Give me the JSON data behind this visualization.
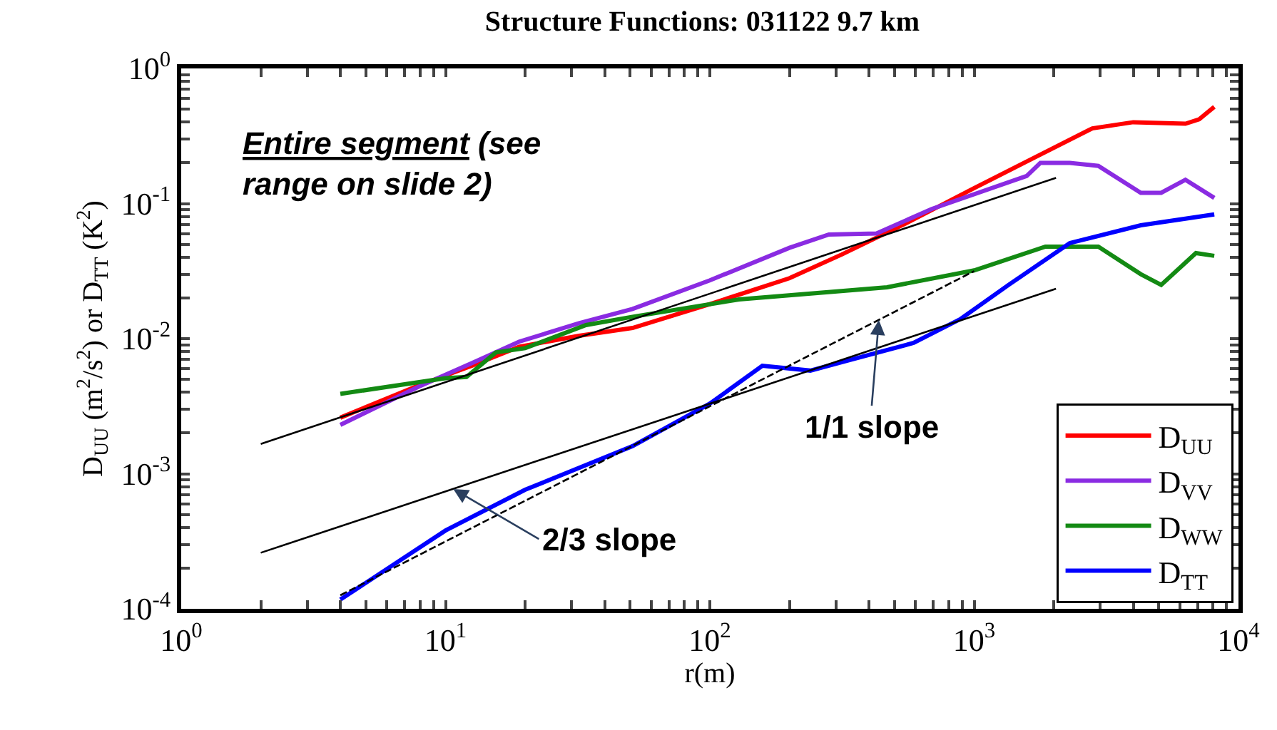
{
  "chart_data": {
    "type": "line",
    "title": "Structure Functions: 031122 9.7 km",
    "xlabel": "r(m)",
    "ylabel": "D$_{UU}$ (m$^{2}$/s$^{2}$) or D$_{TT}$ (K$^{2}$)",
    "log": "xy",
    "legend": "bottom right",
    "marker": "none",
    "line_style": "solid",
    "xlim": [
      1,
      10000
    ],
    "ylim": [
      0.0001,
      1
    ],
    "xticks": [
      {
        "value": 1,
        "label": "10$^{0}$"
      },
      {
        "value": 2,
        "label": null
      },
      {
        "value": 3,
        "label": null
      },
      {
        "value": 4,
        "label": null
      },
      {
        "value": 5,
        "label": null
      },
      {
        "value": 6,
        "label": null
      },
      {
        "value": 7,
        "label": null
      },
      {
        "value": 8,
        "label": null
      },
      {
        "value": 9,
        "label": null
      },
      {
        "value": 10,
        "label": "10$^{1}$"
      },
      {
        "value": 20,
        "label": null
      },
      {
        "value": 30,
        "label": null
      },
      {
        "value": 40,
        "label": null
      },
      {
        "value": 50,
        "label": null
      },
      {
        "value": 60,
        "label": null
      },
      {
        "value": 70,
        "label": null
      },
      {
        "value": 80,
        "label": null
      },
      {
        "value": 90,
        "label": null
      },
      {
        "value": 100,
        "label": "10$^{2}$"
      },
      {
        "value": 200,
        "label": null
      },
      {
        "value": 300,
        "label": null
      },
      {
        "value": 400,
        "label": null
      },
      {
        "value": 500,
        "label": null
      },
      {
        "value": 600,
        "label": null
      },
      {
        "value": 700,
        "label": null
      },
      {
        "value": 800,
        "label": null
      },
      {
        "value": 900,
        "label": null
      },
      {
        "value": 1000,
        "label": "10$^{3}$"
      },
      {
        "value": 2000,
        "label": null
      },
      {
        "value": 3000,
        "label": null
      },
      {
        "value": 4000,
        "label": null
      },
      {
        "value": 5000,
        "label": null
      },
      {
        "value": 6000,
        "label": null
      },
      {
        "value": 7000,
        "label": null
      },
      {
        "value": 8000,
        "label": null
      },
      {
        "value": 9000,
        "label": null
      },
      {
        "value": 10000,
        "label": "10$^{4}$"
      }
    ],
    "yticks": [
      {
        "value": 0.0001,
        "label": "10$^{-4}$"
      },
      {
        "value": 0.0002,
        "label": null
      },
      {
        "value": 0.0003,
        "label": null
      },
      {
        "value": 0.0004,
        "label": null
      },
      {
        "value": 0.0005,
        "label": null
      },
      {
        "value": 0.0006,
        "label": null
      },
      {
        "value": 0.0007,
        "label": null
      },
      {
        "value": 0.0008,
        "label": null
      },
      {
        "value": 0.0009,
        "label": null
      },
      {
        "value": 0.001,
        "label": "10$^{-3}$"
      },
      {
        "value": 0.002,
        "label": null
      },
      {
        "value": 0.003,
        "label": null
      },
      {
        "value": 0.004,
        "label": null
      },
      {
        "value": 0.005,
        "label": null
      },
      {
        "value": 0.006,
        "label": null
      },
      {
        "value": 0.007,
        "label": null
      },
      {
        "value": 0.008,
        "label": null
      },
      {
        "value": 0.009,
        "label": null
      },
      {
        "value": 0.01,
        "label": "10$^{-2}$"
      },
      {
        "value": 0.02,
        "label": null
      },
      {
        "value": 0.03,
        "label": null
      },
      {
        "value": 0.04,
        "label": null
      },
      {
        "value": 0.05,
        "label": null
      },
      {
        "value": 0.06,
        "label": null
      },
      {
        "value": 0.07,
        "label": null
      },
      {
        "value": 0.08,
        "label": null
      },
      {
        "value": 0.09,
        "label": null
      },
      {
        "value": 0.1,
        "label": "10$^{-1}$"
      },
      {
        "value": 0.2,
        "label": null
      },
      {
        "value": 0.3,
        "label": null
      },
      {
        "value": 0.4,
        "label": null
      },
      {
        "value": 0.5,
        "label": null
      },
      {
        "value": 0.6,
        "label": null
      },
      {
        "value": 0.7,
        "label": null
      },
      {
        "value": 0.8,
        "label": null
      },
      {
        "value": 0.9,
        "label": null
      },
      {
        "value": 1,
        "label": "10$^{0}$"
      }
    ],
    "series": [
      {
        "name": "D$_{UU}$",
        "color": "#ff0000",
        "x": [
          4.0,
          7.9,
          12.6,
          19,
          32,
          51,
          100,
          200,
          316,
          550,
          1000,
          1700,
          2800,
          4000,
          6300,
          7100,
          8100
        ],
        "values": [
          0.0026,
          0.0045,
          0.0063,
          0.0087,
          0.0105,
          0.012,
          0.018,
          0.028,
          0.042,
          0.071,
          0.13,
          0.22,
          0.36,
          0.4,
          0.39,
          0.42,
          0.52
        ]
      },
      {
        "name": "D$_{VV}$",
        "color": "#8a2be2",
        "x": [
          4.0,
          7.9,
          12.6,
          19,
          32,
          51,
          100,
          200,
          282,
          427,
          690,
          1580,
          1780,
          2300,
          2950,
          4270,
          5100,
          6300,
          8100
        ],
        "values": [
          0.0023,
          0.0044,
          0.0066,
          0.0095,
          0.013,
          0.0166,
          0.027,
          0.047,
          0.059,
          0.06,
          0.091,
          0.16,
          0.2,
          0.2,
          0.19,
          0.12,
          0.12,
          0.15,
          0.11
        ]
      },
      {
        "name": "D$_{WW}$",
        "color": "#138a13",
        "x": [
          4.0,
          10,
          12,
          15.5,
          20,
          34,
          51,
          129,
          468,
          1000,
          1860,
          2950,
          4270,
          5100,
          6900,
          8100
        ],
        "values": [
          0.0039,
          0.0051,
          0.0052,
          0.0079,
          0.0085,
          0.0126,
          0.0145,
          0.0195,
          0.024,
          0.032,
          0.048,
          0.048,
          0.03,
          0.025,
          0.043,
          0.041
        ]
      },
      {
        "name": "D$_{TT}$",
        "color": "#0000ff",
        "x": [
          4.0,
          10,
          20,
          51,
          100,
          158,
          240,
          590,
          890,
          1350,
          2300,
          4270,
          8100
        ],
        "values": [
          0.000117,
          0.00038,
          0.00076,
          0.0016,
          0.0033,
          0.0063,
          0.0058,
          0.0093,
          0.014,
          0.025,
          0.051,
          0.069,
          0.083
        ]
      },
      {
        "type": "line",
        "color": "#000000",
        "x": [
          2,
          2040
        ],
        "values": [
          0.00166,
          0.155
        ]
      },
      {
        "type": "line",
        "color": "#000000",
        "x": [
          2,
          2040
        ],
        "values": [
          0.00026,
          0.0234
        ]
      },
      {
        "type": "line",
        "color": "#000000",
        "line_style": "dashed",
        "x": [
          4,
          1000
        ],
        "values": [
          0.000126,
          0.0316
        ]
      }
    ],
    "annotations": [
      "Entire segment (see range on slide 2)",
      {
        "text": "1/1 slope",
        "x": 436,
        "y": 0.0137
      },
      {
        "text": "2/3 slope",
        "x": 10.7,
        "y": 0.00077
      }
    ]
  }
}
